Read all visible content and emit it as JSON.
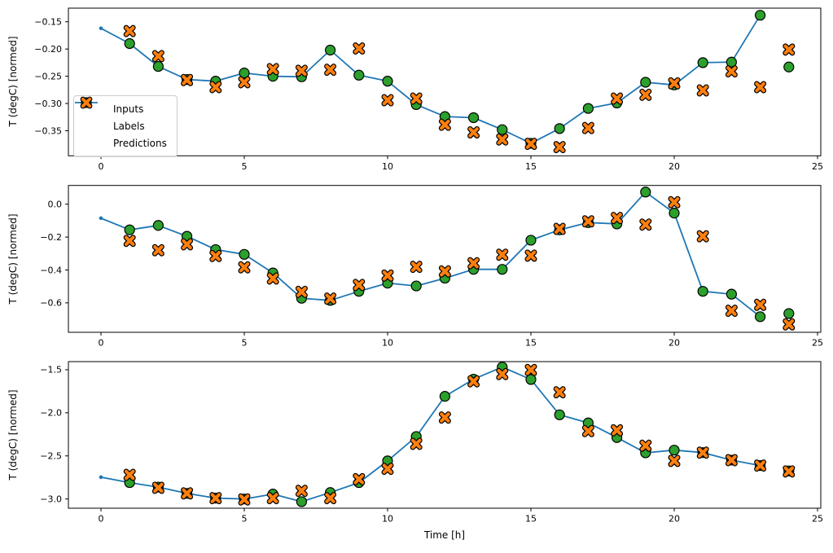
{
  "meta": {
    "xlabel": "Time [h]",
    "background": "#ffffff",
    "colors": {
      "inputs": "#1f77b4",
      "labels": "#2ca02c",
      "predictions": "#ff7f0e",
      "marker_edge": "#000000",
      "spine": "#000000",
      "legend_border": "#cccccc"
    },
    "legend": {
      "position": "upper-left-of-first-subplot",
      "entries": [
        {
          "label": "Inputs",
          "series": "inputs",
          "marker": "line-dot-icon"
        },
        {
          "label": "Labels",
          "series": "labels",
          "marker": "circle-icon"
        },
        {
          "label": "Predictions",
          "series": "predictions",
          "marker": "x-icon"
        }
      ]
    }
  },
  "chart_data": [
    {
      "type": "line",
      "title": "",
      "ylabel": "T (degC) [normed]",
      "xlim": [
        -1.136,
        25.114
      ],
      "ylim": [
        -0.396,
        -0.125
      ],
      "xticks": [
        0,
        5,
        10,
        15,
        20,
        25
      ],
      "xtick_labels": [
        "0",
        "5",
        "10",
        "15",
        "20",
        "25"
      ],
      "yticks": [
        -0.15,
        -0.2,
        -0.25,
        -0.3,
        -0.35
      ],
      "ytick_labels": [
        "−0.15",
        "−0.20",
        "−0.25",
        "−0.30",
        "−0.35"
      ],
      "grid": false,
      "legend_visible": true,
      "series": [
        {
          "name": "Inputs",
          "type": "line",
          "marker": "dot",
          "color": "#1f77b4",
          "x": [
            0,
            1,
            2,
            3,
            4,
            5,
            6,
            7,
            8,
            9,
            10,
            11,
            12,
            13,
            14,
            15,
            16,
            17,
            18,
            19,
            20,
            21,
            22,
            23
          ],
          "y": [
            -0.162,
            -0.19,
            -0.232,
            -0.256,
            -0.259,
            -0.244,
            -0.25,
            -0.251,
            -0.202,
            -0.248,
            -0.259,
            -0.302,
            -0.324,
            -0.326,
            -0.348,
            -0.373,
            -0.346,
            -0.309,
            -0.299,
            -0.261,
            -0.266,
            -0.225,
            -0.224,
            -0.138
          ]
        },
        {
          "name": "Labels",
          "type": "scatter",
          "marker": "circle",
          "color": "#2ca02c",
          "x": [
            1,
            2,
            3,
            4,
            5,
            6,
            7,
            8,
            9,
            10,
            11,
            12,
            13,
            14,
            15,
            16,
            17,
            18,
            19,
            20,
            21,
            22,
            23,
            24
          ],
          "y": [
            -0.19,
            -0.232,
            -0.256,
            -0.259,
            -0.244,
            -0.25,
            -0.251,
            -0.202,
            -0.248,
            -0.259,
            -0.302,
            -0.324,
            -0.326,
            -0.348,
            -0.373,
            -0.346,
            -0.309,
            -0.299,
            -0.261,
            -0.266,
            -0.225,
            -0.224,
            -0.138,
            -0.233
          ]
        },
        {
          "name": "Predictions",
          "type": "scatter",
          "marker": "X",
          "color": "#ff7f0e",
          "x": [
            1,
            2,
            3,
            4,
            5,
            6,
            7,
            8,
            9,
            10,
            11,
            12,
            13,
            14,
            15,
            16,
            17,
            18,
            19,
            20,
            21,
            22,
            23,
            24
          ],
          "y": [
            -0.167,
            -0.213,
            -0.257,
            -0.27,
            -0.261,
            -0.237,
            -0.24,
            -0.238,
            -0.199,
            -0.294,
            -0.291,
            -0.339,
            -0.353,
            -0.366,
            -0.374,
            -0.38,
            -0.345,
            -0.291,
            -0.284,
            -0.263,
            -0.276,
            -0.241,
            -0.27,
            -0.201
          ]
        }
      ]
    },
    {
      "type": "line",
      "title": "",
      "ylabel": "T (degC) [normed]",
      "xlim": [
        -1.136,
        25.114
      ],
      "ylim": [
        -0.779,
        0.114
      ],
      "xticks": [
        0,
        5,
        10,
        15,
        20,
        25
      ],
      "xtick_labels": [
        "0",
        "5",
        "10",
        "15",
        "20",
        "25"
      ],
      "yticks": [
        0.0,
        -0.2,
        -0.4,
        -0.6
      ],
      "ytick_labels": [
        "0.0",
        "−0.2",
        "−0.4",
        "−0.6"
      ],
      "grid": false,
      "legend_visible": false,
      "series": [
        {
          "name": "Inputs",
          "type": "line",
          "marker": "dot",
          "color": "#1f77b4",
          "x": [
            0,
            1,
            2,
            3,
            4,
            5,
            6,
            7,
            8,
            9,
            10,
            11,
            12,
            13,
            14,
            15,
            16,
            17,
            18,
            19,
            20,
            21,
            22,
            23
          ],
          "y": [
            -0.085,
            -0.156,
            -0.129,
            -0.195,
            -0.276,
            -0.305,
            -0.418,
            -0.572,
            -0.585,
            -0.53,
            -0.48,
            -0.497,
            -0.45,
            -0.396,
            -0.396,
            -0.219,
            -0.156,
            -0.112,
            -0.12,
            0.074,
            -0.054,
            -0.53,
            -0.547,
            -0.684
          ]
        },
        {
          "name": "Labels",
          "type": "scatter",
          "marker": "circle",
          "color": "#2ca02c",
          "x": [
            1,
            2,
            3,
            4,
            5,
            6,
            7,
            8,
            9,
            10,
            11,
            12,
            13,
            14,
            15,
            16,
            17,
            18,
            19,
            20,
            21,
            22,
            23,
            24
          ],
          "y": [
            -0.156,
            -0.129,
            -0.195,
            -0.276,
            -0.305,
            -0.418,
            -0.572,
            -0.585,
            -0.53,
            -0.48,
            -0.497,
            -0.45,
            -0.396,
            -0.396,
            -0.219,
            -0.156,
            -0.112,
            -0.12,
            0.074,
            -0.054,
            -0.53,
            -0.547,
            -0.684,
            -0.665
          ]
        },
        {
          "name": "Predictions",
          "type": "scatter",
          "marker": "X",
          "color": "#ff7f0e",
          "x": [
            1,
            2,
            3,
            4,
            5,
            6,
            7,
            8,
            9,
            10,
            11,
            12,
            13,
            14,
            15,
            16,
            17,
            18,
            19,
            20,
            21,
            22,
            23,
            24
          ],
          "y": [
            -0.223,
            -0.28,
            -0.244,
            -0.315,
            -0.384,
            -0.452,
            -0.533,
            -0.574,
            -0.491,
            -0.434,
            -0.381,
            -0.409,
            -0.359,
            -0.307,
            -0.313,
            -0.15,
            -0.104,
            -0.084,
            -0.124,
            0.012,
            -0.195,
            -0.648,
            -0.612,
            -0.731
          ]
        }
      ]
    },
    {
      "type": "line",
      "title": "",
      "ylabel": "T (degC) [normed]",
      "xlim": [
        -1.136,
        25.114
      ],
      "ylim": [
        -3.107,
        -1.406
      ],
      "xticks": [
        0,
        5,
        10,
        15,
        20,
        25
      ],
      "xtick_labels": [
        "0",
        "5",
        "10",
        "15",
        "20",
        "25"
      ],
      "yticks": [
        -1.5,
        -2.0,
        -2.5,
        -3.0
      ],
      "ytick_labels": [
        "−1.5",
        "−2.0",
        "−2.5",
        "−3.0"
      ],
      "grid": false,
      "legend_visible": false,
      "series": [
        {
          "name": "Inputs",
          "type": "line",
          "marker": "dot",
          "color": "#1f77b4",
          "x": [
            0,
            1,
            2,
            3,
            4,
            5,
            6,
            7,
            8,
            9,
            10,
            11,
            12,
            13,
            14,
            15,
            16,
            17,
            18,
            19,
            20,
            21,
            22,
            23
          ],
          "y": [
            -2.747,
            -2.81,
            -2.862,
            -2.935,
            -2.99,
            -3.0,
            -2.943,
            -3.031,
            -2.925,
            -2.81,
            -2.558,
            -2.275,
            -1.809,
            -1.61,
            -1.469,
            -1.613,
            -2.023,
            -2.117,
            -2.287,
            -2.464,
            -2.433,
            -2.462,
            -2.549,
            -2.612
          ]
        },
        {
          "name": "Labels",
          "type": "scatter",
          "marker": "circle",
          "color": "#2ca02c",
          "x": [
            1,
            2,
            3,
            4,
            5,
            6,
            7,
            8,
            9,
            10,
            11,
            12,
            13,
            14,
            15,
            16,
            17,
            18,
            19,
            20,
            21,
            22,
            23,
            24
          ],
          "y": [
            -2.81,
            -2.862,
            -2.935,
            -2.99,
            -3.0,
            -2.943,
            -3.031,
            -2.925,
            -2.81,
            -2.558,
            -2.275,
            -1.809,
            -1.61,
            -1.469,
            -1.613,
            -2.023,
            -2.117,
            -2.287,
            -2.464,
            -2.433,
            -2.462,
            -2.549,
            -2.612,
            -2.675
          ]
        },
        {
          "name": "Predictions",
          "type": "scatter",
          "marker": "X",
          "color": "#ff7f0e",
          "x": [
            1,
            2,
            3,
            4,
            5,
            6,
            7,
            8,
            9,
            10,
            11,
            12,
            13,
            14,
            15,
            16,
            17,
            18,
            19,
            20,
            21,
            22,
            23,
            24
          ],
          "y": [
            -2.72,
            -2.87,
            -2.935,
            -2.99,
            -3.005,
            -2.99,
            -2.905,
            -2.99,
            -2.77,
            -2.65,
            -2.36,
            -2.055,
            -1.635,
            -1.55,
            -1.503,
            -1.762,
            -2.212,
            -2.203,
            -2.382,
            -2.558,
            -2.462,
            -2.549,
            -2.612,
            -2.68
          ]
        }
      ]
    }
  ]
}
